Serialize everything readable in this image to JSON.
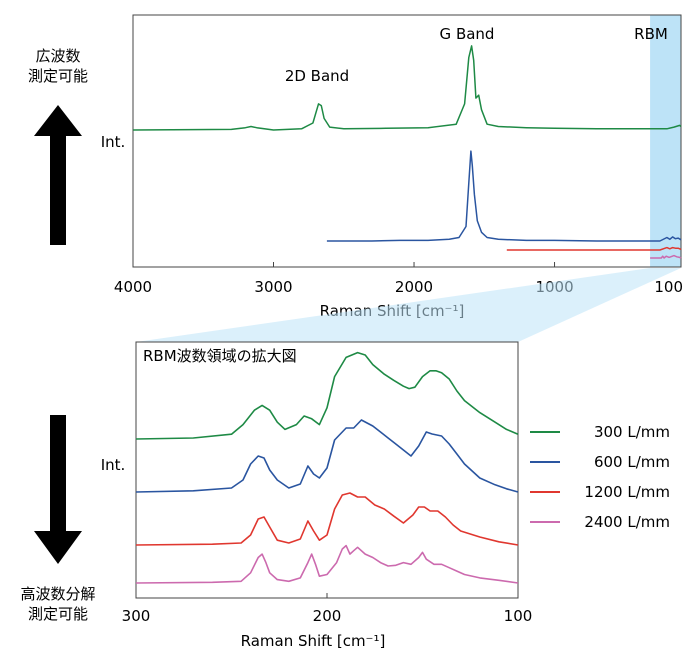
{
  "side_labels": {
    "wide_line1": "広波数",
    "wide_line2": "測定可能",
    "high_line1": "高波数分解",
    "high_line2": "測定可能"
  },
  "colors": {
    "300": "#1e8a45",
    "600": "#2a55a0",
    "1200": "#e0372f",
    "2400": "#cc6aae",
    "highlight": "#bde3f7",
    "rbm_text": "#1b2fd4"
  },
  "chart_data": [
    {
      "type": "line",
      "title": "",
      "ylabel": "Int.",
      "xlabel": "Raman Shift [cm⁻¹]",
      "xlim": [
        4000,
        100
      ],
      "x_ticks": [
        "4000",
        "3000",
        "2000",
        "1000",
        "100"
      ],
      "x_tick_values": [
        4000,
        3000,
        2000,
        1000,
        100
      ],
      "highlight_range": [
        320,
        100
      ],
      "annotations": {
        "g_band": "G Band",
        "band_2d": "2D Band",
        "rbm": "RBM"
      },
      "series": [
        {
          "name": "300 L/mm",
          "color_key": "300",
          "x": [
            4000,
            3300,
            3200,
            3160,
            3120,
            3000,
            2800,
            2720,
            2680,
            2660,
            2640,
            2600,
            2500,
            2200,
            1900,
            1700,
            1640,
            1610,
            1590,
            1575,
            1560,
            1540,
            1520,
            1480,
            1400,
            1200,
            1000,
            700,
            400,
            200,
            150,
            110,
            100
          ],
          "y": [
            0.0,
            0.01,
            0.04,
            0.06,
            0.04,
            0.0,
            0.02,
            0.12,
            0.45,
            0.42,
            0.2,
            0.05,
            0.02,
            0.03,
            0.04,
            0.1,
            0.45,
            1.25,
            1.45,
            1.2,
            0.55,
            0.6,
            0.35,
            0.1,
            0.06,
            0.04,
            0.03,
            0.02,
            0.02,
            0.02,
            0.05,
            0.08,
            0.06
          ]
        },
        {
          "name": "600 L/mm",
          "color_key": "600",
          "x": [
            2620,
            2500,
            2300,
            2100,
            1900,
            1750,
            1680,
            1630,
            1610,
            1595,
            1585,
            1570,
            1550,
            1520,
            1480,
            1400,
            1200,
            1000,
            700,
            400,
            250,
            200,
            180,
            160,
            140,
            120,
            100
          ],
          "y": [
            0.0,
            0.0,
            0.0,
            0.01,
            0.01,
            0.03,
            0.06,
            0.25,
            1.0,
            1.55,
            1.3,
            0.8,
            0.35,
            0.15,
            0.06,
            0.03,
            0.01,
            0.01,
            0.0,
            0.0,
            0.0,
            0.06,
            0.03,
            0.07,
            0.04,
            0.05,
            0.02
          ]
        },
        {
          "name": "1200 L/mm",
          "color_key": "1200",
          "x": [
            1340,
            1000,
            700,
            400,
            250,
            200,
            180,
            160,
            140,
            120,
            100
          ],
          "y": [
            0.0,
            0.0,
            0.0,
            0.0,
            0.0,
            0.04,
            0.02,
            0.04,
            0.03,
            0.03,
            0.01
          ]
        },
        {
          "name": "2400 L/mm",
          "color_key": "2400",
          "x": [
            320,
            260,
            240,
            230,
            220,
            205,
            185,
            150,
            130,
            110,
            100
          ],
          "y": [
            0.0,
            0.0,
            0.0,
            0.03,
            0.0,
            0.03,
            0.01,
            0.04,
            0.02,
            0.01,
            0.0
          ]
        }
      ]
    },
    {
      "type": "line",
      "title": "RBM波数領域の拡大図",
      "ylabel": "Int.",
      "xlabel": "Raman Shift [cm⁻¹]",
      "xlim": [
        300,
        100
      ],
      "x_ticks": [
        "300",
        "200",
        "100"
      ],
      "x_tick_values": [
        300,
        200,
        100
      ],
      "legend_position": "right",
      "series": [
        {
          "name": "300 L/mm",
          "color_key": "300",
          "x": [
            300,
            270,
            250,
            244,
            238,
            234,
            230,
            226,
            222,
            216,
            212,
            208,
            204,
            200,
            196,
            190,
            184,
            180,
            176,
            170,
            165,
            160,
            157,
            154,
            150,
            146,
            143,
            140,
            136,
            132,
            128,
            120,
            112,
            106,
            100
          ],
          "y": [
            0.0,
            0.02,
            0.1,
            0.3,
            0.6,
            0.7,
            0.6,
            0.35,
            0.2,
            0.3,
            0.48,
            0.42,
            0.3,
            0.65,
            1.3,
            1.7,
            1.8,
            1.75,
            1.55,
            1.35,
            1.22,
            1.1,
            1.05,
            1.08,
            1.3,
            1.42,
            1.42,
            1.38,
            1.25,
            1.0,
            0.8,
            0.55,
            0.35,
            0.2,
            0.1
          ]
        },
        {
          "name": "600 L/mm",
          "color_key": "600",
          "x": [
            300,
            270,
            250,
            244,
            240,
            236,
            233,
            230,
            226,
            220,
            214,
            210,
            207,
            204,
            200,
            196,
            190,
            186,
            182,
            180,
            176,
            172,
            168,
            164,
            160,
            156,
            152,
            148,
            145,
            140,
            136,
            132,
            128,
            120,
            112,
            106,
            100
          ],
          "y": [
            0.0,
            0.03,
            0.1,
            0.3,
            0.7,
            0.9,
            0.85,
            0.55,
            0.3,
            0.1,
            0.2,
            0.65,
            0.45,
            0.35,
            0.6,
            1.3,
            1.6,
            1.6,
            1.8,
            1.75,
            1.65,
            1.5,
            1.35,
            1.2,
            1.05,
            0.9,
            1.15,
            1.5,
            1.45,
            1.4,
            1.2,
            0.95,
            0.7,
            0.35,
            0.18,
            0.08,
            0.0
          ]
        },
        {
          "name": "1200 L/mm",
          "color_key": "1200",
          "x": [
            300,
            260,
            245,
            240,
            236,
            233,
            230,
            226,
            220,
            214,
            210,
            207,
            204,
            200,
            196,
            192,
            188,
            184,
            180,
            175,
            170,
            165,
            160,
            155,
            152,
            149,
            146,
            142,
            138,
            134,
            130,
            120,
            110,
            100
          ],
          "y": [
            0.0,
            0.02,
            0.05,
            0.25,
            0.65,
            0.7,
            0.45,
            0.12,
            0.05,
            0.15,
            0.6,
            0.35,
            0.12,
            0.25,
            0.9,
            1.25,
            1.3,
            1.2,
            1.2,
            1.0,
            0.9,
            0.72,
            0.55,
            0.75,
            0.95,
            0.95,
            0.85,
            0.85,
            0.7,
            0.5,
            0.35,
            0.2,
            0.08,
            0.0
          ]
        },
        {
          "name": "2400 L/mm",
          "color_key": "2400",
          "x": [
            300,
            260,
            245,
            240,
            236,
            234,
            232,
            230,
            226,
            220,
            214,
            210,
            208,
            206,
            204,
            200,
            195,
            192,
            190,
            188,
            186,
            184,
            180,
            176,
            172,
            168,
            164,
            160,
            156,
            152,
            150,
            148,
            144,
            140,
            136,
            132,
            128,
            120,
            110,
            100
          ],
          "y": [
            0.0,
            0.02,
            0.05,
            0.3,
            0.75,
            0.85,
            0.6,
            0.3,
            0.1,
            0.05,
            0.15,
            0.6,
            0.85,
            0.55,
            0.2,
            0.25,
            0.6,
            1.0,
            1.1,
            0.85,
            0.95,
            1.05,
            0.85,
            0.75,
            0.6,
            0.5,
            0.52,
            0.6,
            0.55,
            0.75,
            0.9,
            0.7,
            0.55,
            0.55,
            0.45,
            0.35,
            0.25,
            0.15,
            0.08,
            0.0
          ]
        }
      ]
    }
  ]
}
